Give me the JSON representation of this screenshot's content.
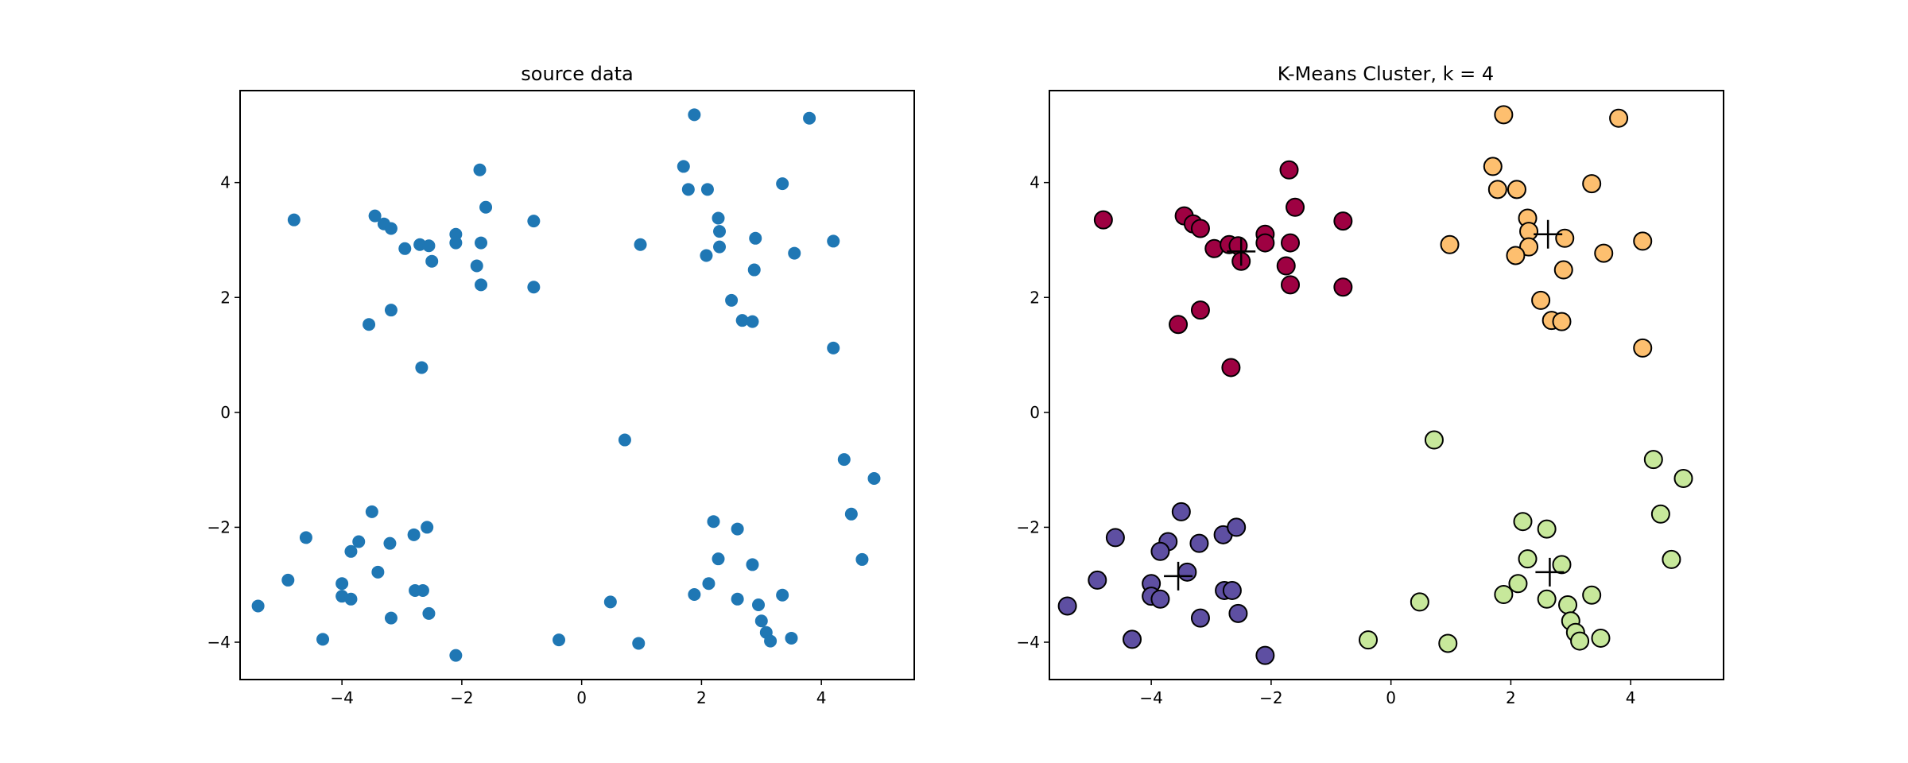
{
  "chart_data": [
    {
      "type": "scatter",
      "title": "source data",
      "xlabel": "",
      "ylabel": "",
      "xlim": [
        -5.7,
        5.55
      ],
      "ylim": [
        -4.65,
        5.6
      ],
      "xticks": [
        -4,
        -2,
        0,
        2,
        4
      ],
      "yticks": [
        -4,
        -2,
        0,
        2,
        4
      ],
      "tick_labels": {
        "x": [
          "−4",
          "−2",
          "0",
          "2",
          "4"
        ],
        "y": [
          "−4",
          "−2",
          "0",
          "2",
          "4"
        ]
      },
      "grid": false,
      "marker_color": "#1f77b4",
      "points": [
        {
          "x": -4.8,
          "y": 3.35
        },
        {
          "x": -3.45,
          "y": 3.42
        },
        {
          "x": -3.3,
          "y": 3.28
        },
        {
          "x": -3.18,
          "y": 3.2
        },
        {
          "x": -2.95,
          "y": 2.85
        },
        {
          "x": -2.7,
          "y": 2.92
        },
        {
          "x": -2.55,
          "y": 2.9
        },
        {
          "x": -2.5,
          "y": 2.63
        },
        {
          "x": -2.1,
          "y": 3.1
        },
        {
          "x": -2.1,
          "y": 2.95
        },
        {
          "x": -1.75,
          "y": 2.55
        },
        {
          "x": -1.7,
          "y": 4.22
        },
        {
          "x": -1.68,
          "y": 2.95
        },
        {
          "x": -1.6,
          "y": 3.57
        },
        {
          "x": -1.68,
          "y": 2.22
        },
        {
          "x": -0.8,
          "y": 3.33
        },
        {
          "x": -0.8,
          "y": 2.18
        },
        {
          "x": -3.55,
          "y": 1.53
        },
        {
          "x": -3.18,
          "y": 1.78
        },
        {
          "x": -2.67,
          "y": 0.78
        },
        {
          "x": 1.7,
          "y": 4.28
        },
        {
          "x": 1.88,
          "y": 5.18
        },
        {
          "x": 3.8,
          "y": 5.12
        },
        {
          "x": 1.78,
          "y": 3.88
        },
        {
          "x": 2.1,
          "y": 3.88
        },
        {
          "x": 3.35,
          "y": 3.98
        },
        {
          "x": 2.28,
          "y": 3.38
        },
        {
          "x": 2.3,
          "y": 3.15
        },
        {
          "x": 2.3,
          "y": 2.88
        },
        {
          "x": 2.9,
          "y": 3.03
        },
        {
          "x": 2.08,
          "y": 2.73
        },
        {
          "x": 2.88,
          "y": 2.48
        },
        {
          "x": 3.55,
          "y": 2.77
        },
        {
          "x": 4.2,
          "y": 2.98
        },
        {
          "x": 0.98,
          "y": 2.92
        },
        {
          "x": 2.5,
          "y": 1.95
        },
        {
          "x": 2.68,
          "y": 1.6
        },
        {
          "x": 2.85,
          "y": 1.58
        },
        {
          "x": 4.2,
          "y": 1.12
        },
        {
          "x": 0.72,
          "y": -0.48
        },
        {
          "x": 4.38,
          "y": -0.82
        },
        {
          "x": 4.88,
          "y": -1.15
        },
        {
          "x": 4.5,
          "y": -1.77
        },
        {
          "x": 4.68,
          "y": -2.56
        },
        {
          "x": 2.2,
          "y": -1.9
        },
        {
          "x": 2.6,
          "y": -2.03
        },
        {
          "x": 2.28,
          "y": -2.55
        },
        {
          "x": 2.85,
          "y": -2.65
        },
        {
          "x": 2.12,
          "y": -2.98
        },
        {
          "x": 1.88,
          "y": -3.17
        },
        {
          "x": 2.6,
          "y": -3.25
        },
        {
          "x": 2.95,
          "y": -3.35
        },
        {
          "x": 3.35,
          "y": -3.18
        },
        {
          "x": 3.0,
          "y": -3.63
        },
        {
          "x": 3.08,
          "y": -3.83
        },
        {
          "x": 3.15,
          "y": -3.98
        },
        {
          "x": 3.5,
          "y": -3.93
        },
        {
          "x": 0.48,
          "y": -3.3
        },
        {
          "x": 0.95,
          "y": -4.02
        },
        {
          "x": -0.38,
          "y": -3.96
        },
        {
          "x": -3.5,
          "y": -1.73
        },
        {
          "x": -4.6,
          "y": -2.18
        },
        {
          "x": -3.72,
          "y": -2.25
        },
        {
          "x": -3.2,
          "y": -2.28
        },
        {
          "x": -2.8,
          "y": -2.13
        },
        {
          "x": -2.58,
          "y": -2.0
        },
        {
          "x": -3.85,
          "y": -2.42
        },
        {
          "x": -4.9,
          "y": -2.92
        },
        {
          "x": -4.0,
          "y": -2.98
        },
        {
          "x": -3.4,
          "y": -2.78
        },
        {
          "x": -2.78,
          "y": -3.1
        },
        {
          "x": -2.65,
          "y": -3.1
        },
        {
          "x": -4.0,
          "y": -3.2
        },
        {
          "x": -3.85,
          "y": -3.25
        },
        {
          "x": -5.4,
          "y": -3.37
        },
        {
          "x": -2.55,
          "y": -3.5
        },
        {
          "x": -3.18,
          "y": -3.58
        },
        {
          "x": -4.32,
          "y": -3.95
        },
        {
          "x": -2.1,
          "y": -4.23
        }
      ]
    },
    {
      "type": "scatter",
      "title": "K-Means Cluster, k = 4",
      "xlabel": "",
      "ylabel": "",
      "xlim": [
        -5.7,
        5.55
      ],
      "ylim": [
        -4.65,
        5.6
      ],
      "xticks": [
        -4,
        -2,
        0,
        2,
        4
      ],
      "yticks": [
        -4,
        -2,
        0,
        2,
        4
      ],
      "tick_labels": {
        "x": [
          "−4",
          "−2",
          "0",
          "2",
          "4"
        ],
        "y": [
          "−4",
          "−2",
          "0",
          "2",
          "4"
        ]
      },
      "grid": false,
      "edge_color": "#000000",
      "centroid_marker": "+",
      "clusters": [
        {
          "color": "#9e0142",
          "centroid": {
            "x": -2.5,
            "y": 2.8
          },
          "points": [
            {
              "x": -4.8,
              "y": 3.35
            },
            {
              "x": -3.45,
              "y": 3.42
            },
            {
              "x": -3.3,
              "y": 3.28
            },
            {
              "x": -3.18,
              "y": 3.2
            },
            {
              "x": -2.95,
              "y": 2.85
            },
            {
              "x": -2.7,
              "y": 2.92
            },
            {
              "x": -2.55,
              "y": 2.9
            },
            {
              "x": -2.5,
              "y": 2.63
            },
            {
              "x": -2.1,
              "y": 3.1
            },
            {
              "x": -2.1,
              "y": 2.95
            },
            {
              "x": -1.75,
              "y": 2.55
            },
            {
              "x": -1.7,
              "y": 4.22
            },
            {
              "x": -1.68,
              "y": 2.95
            },
            {
              "x": -1.6,
              "y": 3.57
            },
            {
              "x": -1.68,
              "y": 2.22
            },
            {
              "x": -0.8,
              "y": 3.33
            },
            {
              "x": -0.8,
              "y": 2.18
            },
            {
              "x": -3.55,
              "y": 1.53
            },
            {
              "x": -3.18,
              "y": 1.78
            },
            {
              "x": -2.67,
              "y": 0.78
            }
          ]
        },
        {
          "color": "#fdbf6f",
          "centroid": {
            "x": 2.62,
            "y": 3.1
          },
          "points": [
            {
              "x": 1.7,
              "y": 4.28
            },
            {
              "x": 1.88,
              "y": 5.18
            },
            {
              "x": 3.8,
              "y": 5.12
            },
            {
              "x": 1.78,
              "y": 3.88
            },
            {
              "x": 2.1,
              "y": 3.88
            },
            {
              "x": 3.35,
              "y": 3.98
            },
            {
              "x": 2.28,
              "y": 3.38
            },
            {
              "x": 2.3,
              "y": 3.15
            },
            {
              "x": 2.3,
              "y": 2.88
            },
            {
              "x": 2.9,
              "y": 3.03
            },
            {
              "x": 2.08,
              "y": 2.73
            },
            {
              "x": 2.88,
              "y": 2.48
            },
            {
              "x": 3.55,
              "y": 2.77
            },
            {
              "x": 4.2,
              "y": 2.98
            },
            {
              "x": 0.98,
              "y": 2.92
            },
            {
              "x": 2.5,
              "y": 1.95
            },
            {
              "x": 2.68,
              "y": 1.6
            },
            {
              "x": 2.85,
              "y": 1.58
            },
            {
              "x": 4.2,
              "y": 1.12
            }
          ]
        },
        {
          "color": "#c7e89b",
          "centroid": {
            "x": 2.65,
            "y": -2.78
          },
          "points": [
            {
              "x": 0.72,
              "y": -0.48
            },
            {
              "x": 4.38,
              "y": -0.82
            },
            {
              "x": 4.88,
              "y": -1.15
            },
            {
              "x": 4.5,
              "y": -1.77
            },
            {
              "x": 4.68,
              "y": -2.56
            },
            {
              "x": 2.2,
              "y": -1.9
            },
            {
              "x": 2.6,
              "y": -2.03
            },
            {
              "x": 2.28,
              "y": -2.55
            },
            {
              "x": 2.85,
              "y": -2.65
            },
            {
              "x": 2.12,
              "y": -2.98
            },
            {
              "x": 1.88,
              "y": -3.17
            },
            {
              "x": 2.6,
              "y": -3.25
            },
            {
              "x": 2.95,
              "y": -3.35
            },
            {
              "x": 3.35,
              "y": -3.18
            },
            {
              "x": 3.0,
              "y": -3.63
            },
            {
              "x": 3.08,
              "y": -3.83
            },
            {
              "x": 3.15,
              "y": -3.98
            },
            {
              "x": 3.5,
              "y": -3.93
            },
            {
              "x": 0.48,
              "y": -3.3
            },
            {
              "x": 0.95,
              "y": -4.02
            },
            {
              "x": -0.38,
              "y": -3.96
            }
          ]
        },
        {
          "color": "#5e4fa2",
          "centroid": {
            "x": -3.55,
            "y": -2.85
          },
          "points": [
            {
              "x": -3.5,
              "y": -1.73
            },
            {
              "x": -4.6,
              "y": -2.18
            },
            {
              "x": -3.72,
              "y": -2.25
            },
            {
              "x": -3.2,
              "y": -2.28
            },
            {
              "x": -2.8,
              "y": -2.13
            },
            {
              "x": -2.58,
              "y": -2.0
            },
            {
              "x": -3.85,
              "y": -2.42
            },
            {
              "x": -4.9,
              "y": -2.92
            },
            {
              "x": -4.0,
              "y": -2.98
            },
            {
              "x": -3.4,
              "y": -2.78
            },
            {
              "x": -2.78,
              "y": -3.1
            },
            {
              "x": -2.65,
              "y": -3.1
            },
            {
              "x": -4.0,
              "y": -3.2
            },
            {
              "x": -3.85,
              "y": -3.25
            },
            {
              "x": -5.4,
              "y": -3.37
            },
            {
              "x": -2.55,
              "y": -3.5
            },
            {
              "x": -3.18,
              "y": -3.58
            },
            {
              "x": -4.32,
              "y": -3.95
            },
            {
              "x": -2.1,
              "y": -4.23
            }
          ]
        }
      ]
    }
  ]
}
